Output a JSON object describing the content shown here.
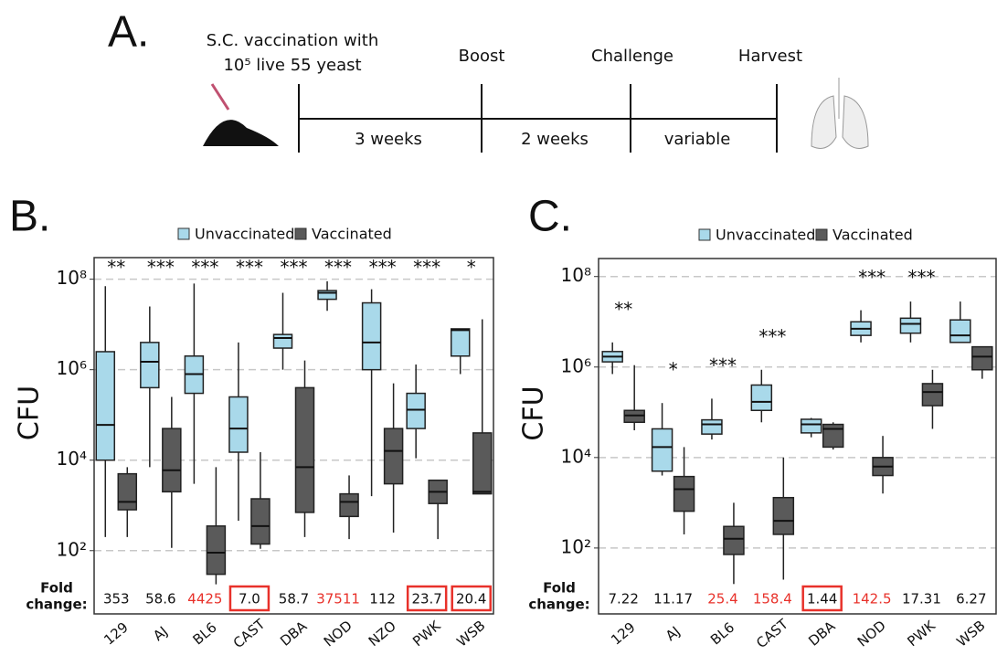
{
  "panel_a": {
    "label": "A.",
    "step1_line1": "S.C. vaccination with",
    "step1_line2": "10⁵ live 55 yeast",
    "step2": "Boost",
    "step3": "Challenge",
    "step4": "Harvest",
    "interval1": "3 weeks",
    "interval2": "2 weeks",
    "interval3": "variable"
  },
  "chart_data": [
    {
      "type": "box",
      "panel": "B.",
      "y_label": "CFU",
      "log_scale": true,
      "grid": true,
      "legend_position": "top",
      "ylim": [
        4,
        300000000
      ],
      "yticks": [
        {
          "value": 100,
          "label": "10²"
        },
        {
          "value": 10000,
          "label": "10⁴"
        },
        {
          "value": 1000000,
          "label": "10⁶"
        },
        {
          "value": 100000000,
          "label": "10⁸"
        }
      ],
      "categories": [
        "129",
        "AJ",
        "BL6",
        "CAST",
        "DBA",
        "NOD",
        "NZO",
        "PWK",
        "WSB"
      ],
      "series": [
        {
          "name": "Unvaccinated",
          "color": "#a9d9ea",
          "min": [
            200,
            7000,
            3000,
            460,
            1000000,
            20000000,
            1600,
            11000,
            800000
          ],
          "q1": [
            10000,
            400000,
            300000,
            15000,
            3000000,
            36000000,
            1000000,
            50000,
            2000000
          ],
          "median": [
            60000,
            1500000,
            800000,
            50000,
            5000000,
            50000000,
            4000000,
            130000,
            7500000
          ],
          "q3": [
            2500000,
            4000000,
            2000000,
            250000,
            6000000,
            56000000,
            30000000,
            300000,
            8000000
          ],
          "max": [
            70000000,
            25000000,
            80000000,
            4000000,
            50000000,
            90000000,
            60000000,
            1300000,
            8000000
          ]
        },
        {
          "name": "Vaccinated",
          "color": "#5a5a5a",
          "min": [
            200,
            115,
            18,
            110,
            200,
            180,
            250,
            180,
            1800
          ],
          "q1": [
            800,
            2000,
            30,
            140,
            700,
            570,
            3000,
            1100,
            1800
          ],
          "median": [
            1200,
            6000,
            90,
            350,
            7000,
            1200,
            16000,
            2000,
            2000
          ],
          "q3": [
            5000,
            50000,
            350,
            1400,
            400000,
            1800,
            50000,
            3600,
            40000
          ],
          "max": [
            7000,
            250000,
            7000,
            15000,
            1600000,
            4600,
            500000,
            3600,
            13000000
          ]
        }
      ],
      "significance": [
        "**",
        "***",
        "***",
        "***",
        "***",
        "***",
        "***",
        "***",
        "*"
      ],
      "fold_change": {
        "label": [
          "Fold",
          "change:"
        ],
        "values": [
          353,
          58.6,
          4425,
          7,
          58.7,
          37511,
          112,
          23.7,
          20.4
        ],
        "value_labels": [
          "353",
          "58.6",
          "4425",
          "7.0",
          "58.7",
          "37511",
          "112",
          "23.7",
          "20.4"
        ],
        "colors": [
          "#111111",
          "#111111",
          "#e8312a",
          "#111111",
          "#111111",
          "#e8312a",
          "#111111",
          "#111111",
          "#111111"
        ],
        "boxed": [
          false,
          false,
          false,
          true,
          false,
          false,
          false,
          true,
          true
        ]
      }
    },
    {
      "type": "box",
      "panel": "C.",
      "y_label": "CFU",
      "log_scale": true,
      "grid": true,
      "legend_position": "top",
      "ylim": [
        3.5,
        250000000
      ],
      "yticks": [
        {
          "value": 100,
          "label": "10²"
        },
        {
          "value": 10000,
          "label": "10⁴"
        },
        {
          "value": 1000000,
          "label": "10⁶"
        },
        {
          "value": 100000000,
          "label": "10⁸"
        }
      ],
      "categories": [
        "129",
        "AJ",
        "BL6",
        "CAST",
        "DBA",
        "NOD",
        "PWK",
        "WSB"
      ],
      "series": [
        {
          "name": "Unvaccinated",
          "color": "#a9d9ea",
          "min": [
            700000,
            4000,
            25000,
            60000,
            28000,
            3500000,
            3500000,
            3500000
          ],
          "q1": [
            1300000,
            5000,
            33000,
            110000,
            35000,
            5000000,
            5600000,
            3500000
          ],
          "median": [
            1700000,
            17000,
            54000,
            170000,
            54000,
            7000000,
            9000000,
            5000000
          ],
          "q3": [
            2200000,
            43000,
            68000,
            400000,
            70000,
            10000000,
            12000000,
            11000000
          ],
          "max": [
            3500000,
            160000,
            200000,
            870000,
            75000,
            18000000,
            28000000,
            28000000
          ]
        },
        {
          "name": "Vaccinated",
          "color": "#5a5a5a",
          "min": [
            40000,
            200,
            16,
            20,
            15000,
            1600,
            43000,
            550000
          ],
          "q1": [
            60000,
            650,
            72,
            200,
            17000,
            4000,
            140000,
            870000
          ],
          "median": [
            85000,
            2000,
            160,
            400,
            43000,
            6300,
            280000,
            1700000
          ],
          "q3": [
            110000,
            3800,
            300,
            1300,
            54000,
            10000,
            430000,
            2800000
          ],
          "max": [
            1100000,
            17000,
            1000,
            10000,
            60000,
            30000,
            870000,
            2800000
          ]
        }
      ],
      "significance": [
        "**",
        "*",
        "***",
        "***",
        null,
        "***",
        "***",
        null
      ],
      "fold_change": {
        "label": [
          "Fold",
          "change:"
        ],
        "values": [
          7.22,
          11.17,
          25.4,
          158.4,
          1.44,
          142.5,
          17.31,
          6.27
        ],
        "colors": [
          "#111111",
          "#111111",
          "#e8312a",
          "#e8312a",
          "#111111",
          "#e8312a",
          "#111111",
          "#111111"
        ],
        "boxed": [
          false,
          false,
          false,
          false,
          true,
          false,
          false,
          false
        ]
      }
    }
  ]
}
